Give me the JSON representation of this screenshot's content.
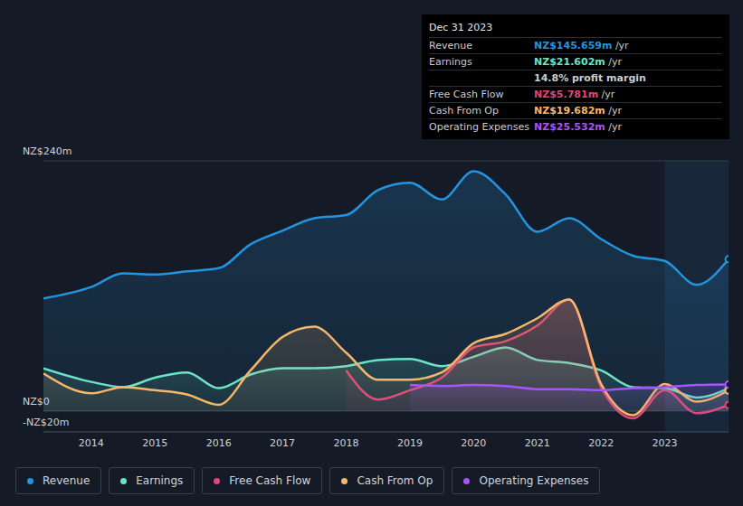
{
  "chart_data": {
    "type": "area",
    "x": [
      2013.25,
      2014,
      2014.5,
      2015,
      2015.5,
      2016,
      2016.5,
      2017,
      2017.5,
      2018,
      2018.5,
      2019,
      2019.5,
      2020,
      2020.5,
      2021,
      2021.5,
      2022,
      2022.5,
      2023,
      2023.5,
      2024
    ],
    "xlim": [
      2013.25,
      2024
    ],
    "xticks": [
      2014,
      2015,
      2016,
      2017,
      2018,
      2019,
      2020,
      2021,
      2022,
      2023
    ],
    "ylim": [
      -20,
      240
    ],
    "yticks": [
      {
        "value": -20,
        "label": "-NZ$20m"
      },
      {
        "value": 0,
        "label": "NZ$0"
      },
      {
        "value": 240,
        "label": "NZ$240m"
      }
    ],
    "grid": true,
    "legend": "bottom",
    "series": [
      {
        "name": "Revenue",
        "color": "#2394df",
        "values": [
          108,
          119,
          132,
          131,
          134,
          137,
          160,
          173,
          185,
          188,
          212,
          219,
          203,
          230,
          208,
          172,
          185,
          165,
          149,
          144,
          121,
          145.659
        ]
      },
      {
        "name": "Earnings",
        "color": "#6ae3c7",
        "values": [
          41,
          28,
          23,
          32,
          37,
          22,
          35,
          41,
          41,
          43,
          49,
          50,
          43,
          52,
          61,
          49,
          46,
          39,
          23,
          22,
          13,
          21.602
        ]
      },
      {
        "name": "Free Cash Flow",
        "color": "#e0457b",
        "values": [
          null,
          null,
          null,
          null,
          null,
          null,
          null,
          null,
          null,
          39,
          11,
          20,
          32,
          61,
          67,
          82,
          107,
          23,
          -7,
          20,
          -2,
          5.781
        ]
      },
      {
        "name": "Cash From Op",
        "color": "#f5b76a",
        "values": [
          36,
          17,
          23,
          20,
          16,
          6,
          39,
          71,
          81,
          56,
          30,
          30,
          37,
          65,
          74,
          89,
          107,
          26,
          -4,
          26,
          9,
          19.682
        ]
      },
      {
        "name": "Operating Expenses",
        "color": "#a855f7",
        "values": [
          null,
          null,
          null,
          null,
          null,
          null,
          null,
          null,
          null,
          null,
          null,
          25,
          24,
          25,
          24,
          21,
          21,
          20,
          22,
          23,
          25,
          25.532
        ]
      }
    ],
    "summary": {
      "date": "Dec 31 2023",
      "rows": [
        {
          "label": "Revenue",
          "value": "NZ$145.659m",
          "unit": "/yr"
        },
        {
          "label": "Earnings",
          "value": "NZ$21.602m",
          "unit": "/yr"
        },
        {
          "note": "14.8% profit margin"
        },
        {
          "label": "Free Cash Flow",
          "value": "NZ$5.781m",
          "unit": "/yr"
        },
        {
          "label": "Cash From Op",
          "value": "NZ$19.682m",
          "unit": "/yr"
        },
        {
          "label": "Operating Expenses",
          "value": "NZ$25.532m",
          "unit": "/yr"
        }
      ]
    }
  }
}
